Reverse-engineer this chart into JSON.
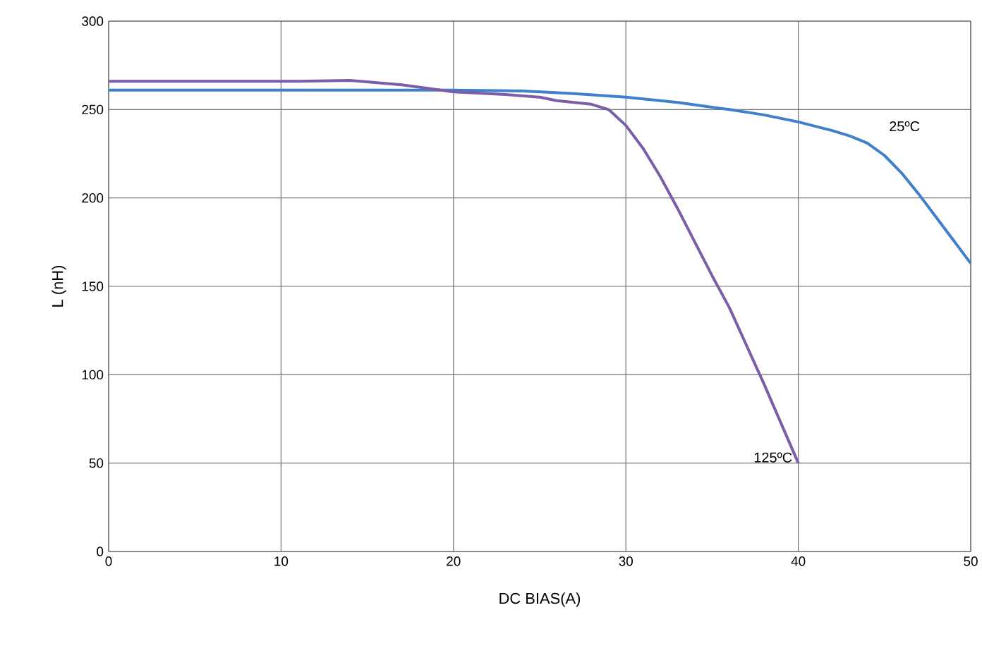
{
  "chart_data": {
    "type": "line",
    "xlabel": "DC BIAS(A)",
    "ylabel": "L (nH)",
    "xlim": [
      0,
      50
    ],
    "ylim": [
      0,
      300
    ],
    "xticks": [
      0,
      10,
      20,
      30,
      40,
      50
    ],
    "yticks": [
      0,
      50,
      100,
      150,
      200,
      250,
      300
    ],
    "grid": true,
    "legend": false,
    "marker": "none",
    "line_style": "solid",
    "series": [
      {
        "name": "25ºC",
        "color": "#3f7fcc",
        "x": [
          0,
          10,
          20,
          24,
          27,
          30,
          33,
          36,
          38,
          40,
          42,
          43,
          44,
          45,
          46,
          47,
          48,
          49,
          50
        ],
        "values": [
          261,
          261,
          261,
          260.5,
          259,
          257,
          254,
          250,
          247,
          243,
          238,
          235,
          231,
          224,
          214,
          202,
          189,
          176,
          163
        ]
      },
      {
        "name": "125ºC",
        "color": "#7b5ea7",
        "x": [
          0,
          11,
          14,
          17,
          20,
          23,
          25,
          26,
          28,
          29,
          30,
          31,
          32,
          33,
          34,
          35,
          36,
          38,
          40
        ],
        "values": [
          266,
          266,
          266.5,
          264,
          260,
          258.5,
          257,
          255,
          253,
          250,
          241,
          228,
          212,
          194,
          175,
          156,
          138,
          95,
          50
        ]
      }
    ]
  }
}
